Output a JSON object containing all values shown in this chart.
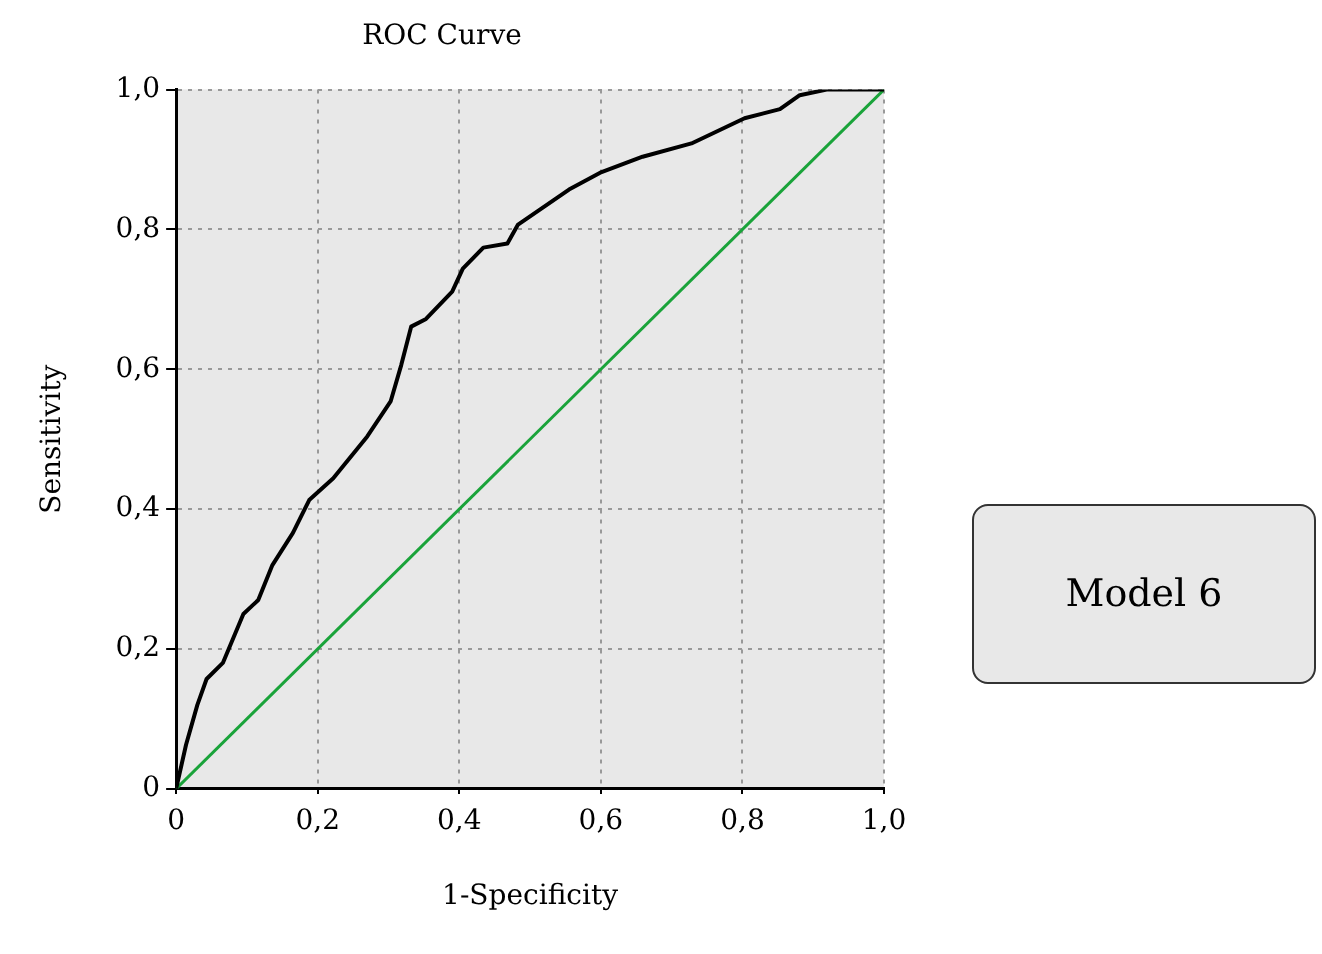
{
  "chart_data": {
    "type": "line",
    "title": "ROC Curve",
    "xlabel": "1-Specificity",
    "ylabel": "Sensitivity",
    "xlim": [
      0,
      1
    ],
    "ylim": [
      0,
      1
    ],
    "xticks": [
      0,
      {
        "value": 0.2,
        "label": "0,2"
      },
      {
        "value": 0.4,
        "label": "0,4"
      },
      {
        "value": 0.6,
        "label": "0,6"
      },
      {
        "value": 0.8,
        "label": "0,8"
      },
      {
        "value": 1,
        "label": "1,0"
      }
    ],
    "yticks": [
      0,
      {
        "value": 0.2,
        "label": "0,2"
      },
      {
        "value": 0.4,
        "label": "0,4"
      },
      {
        "value": 0.6,
        "label": "0,6"
      },
      {
        "value": 0.8,
        "label": "0,8"
      },
      {
        "value": 1,
        "label": "1,0"
      }
    ],
    "grid": true,
    "legend": false,
    "marker": "none",
    "annotations": [
      "Model 6"
    ],
    "series": [
      {
        "color": "#000000",
        "x": [
          0,
          0.014,
          0.03,
          0.043,
          0.066,
          0.095,
          0.116,
          0.136,
          0.165,
          0.188,
          0.222,
          0.27,
          0.303,
          0.318,
          0.332,
          0.353,
          0.39,
          0.405,
          0.434,
          0.468,
          0.483,
          0.555,
          0.601,
          0.659,
          0.728,
          0.803,
          0.853,
          0.881,
          0.919,
          0.97,
          1
        ],
        "values": [
          0,
          0.063,
          0.12,
          0.157,
          0.18,
          0.25,
          0.27,
          0.32,
          0.366,
          0.413,
          0.444,
          0.504,
          0.554,
          0.606,
          0.661,
          0.672,
          0.711,
          0.744,
          0.774,
          0.78,
          0.807,
          0.857,
          0.882,
          0.904,
          0.923,
          0.959,
          0.972,
          0.992,
          1,
          1,
          1
        ]
      },
      {
        "color": "#1aa33a",
        "x": [
          0,
          1
        ],
        "values": [
          0,
          1
        ]
      }
    ]
  }
}
